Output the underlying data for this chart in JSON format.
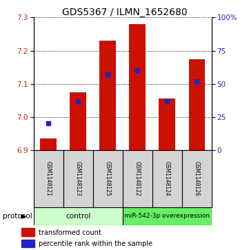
{
  "title": "GDS5367 / ILMN_1652680",
  "samples": [
    "GSM1148121",
    "GSM1148123",
    "GSM1148125",
    "GSM1148122",
    "GSM1148124",
    "GSM1148126"
  ],
  "transformed_counts": [
    6.935,
    7.075,
    7.23,
    7.28,
    7.055,
    7.175
  ],
  "percentile_ranks": [
    20,
    37,
    57,
    60,
    37,
    52
  ],
  "ylim_left": [
    6.9,
    7.3
  ],
  "ylim_right": [
    0,
    100
  ],
  "yticks_left": [
    6.9,
    7.0,
    7.1,
    7.2,
    7.3
  ],
  "yticks_right": [
    0,
    25,
    50,
    75,
    100
  ],
  "bar_color": "#cc1100",
  "dot_color": "#2222cc",
  "control_label": "control",
  "treatment_label": "miR-542-3p overexpression",
  "control_color": "#ccffcc",
  "treatment_color": "#66ee66",
  "legend_red": "transformed count",
  "legend_blue": "percentile rank within the sample",
  "base_value": 6.9,
  "bar_width": 0.55,
  "n_control": 3,
  "label_facecolor": "#d4d4d4"
}
